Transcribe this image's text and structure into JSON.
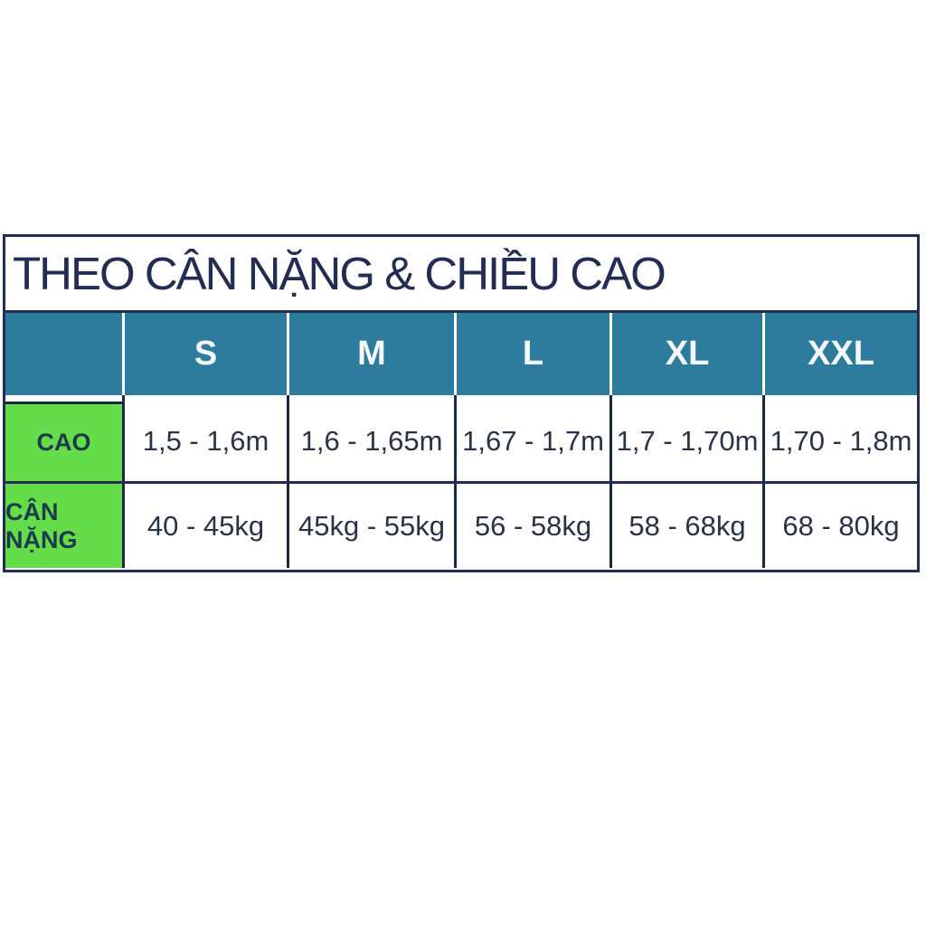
{
  "size_chart": {
    "title": "THEO CÂN NẶNG & CHIỀU CAO",
    "columns": [
      "",
      "S",
      "M",
      "L",
      "XL",
      "XXL"
    ],
    "rows": [
      {
        "label": "CAO",
        "values": [
          "1,5 - 1,6m",
          "1,6 - 1,65m",
          "1,67 - 1,7m",
          "1,7 - 1,70m",
          "1,70 - 1,8m"
        ]
      },
      {
        "label": "CÂN NẶNG",
        "values": [
          "40 - 45kg",
          "45kg - 55kg",
          "56 - 58kg",
          "58 - 68kg",
          "68 - 80kg"
        ]
      }
    ],
    "colors": {
      "header_bg": "#2e7c9d",
      "label_bg": "#65dd4a",
      "border_navy": "#232c52",
      "separator_dark": "#1d2744",
      "title_text": "#232c52",
      "header_text": "#ffffff",
      "value_text": "#2a3246",
      "label_text": "#1d3a4d",
      "page_bg": "#ffffff"
    }
  },
  "chart_data": {
    "type": "table",
    "title": "THEO CÂN NẶNG & CHIỀU CAO",
    "columns": [
      "",
      "S",
      "M",
      "L",
      "XL",
      "XXL"
    ],
    "rows": [
      [
        "CAO",
        "1,5 - 1,6m",
        "1,6 - 1,65m",
        "1,67 - 1,7m",
        "1,7 - 1,70m",
        "1,70 - 1,8m"
      ],
      [
        "CÂN NẶNG",
        "40 - 45kg",
        "45kg - 55kg",
        "56 - 58kg",
        "58 - 68kg",
        "68 - 80kg"
      ]
    ]
  }
}
